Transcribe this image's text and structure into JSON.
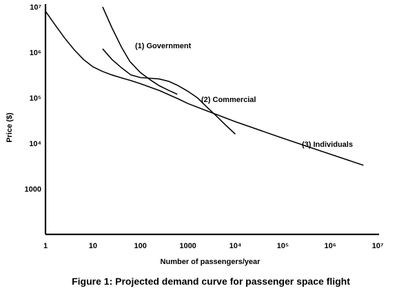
{
  "chart_data": {
    "type": "line",
    "title": "",
    "caption": "Figure 1:  Projected demand curve for passenger space flight",
    "xlabel": "Number of passengers/year",
    "ylabel": "Price ($)",
    "x_scale": "log",
    "y_scale": "log",
    "xlim": [
      1,
      10000000
    ],
    "ylim": [
      100,
      10000000
    ],
    "x_ticks": [
      {
        "value": 1,
        "label": "1"
      },
      {
        "value": 10,
        "label": "10"
      },
      {
        "value": 100,
        "label": "100"
      },
      {
        "value": 1000,
        "label": "1000"
      },
      {
        "value": 10000,
        "label": "10⁴"
      },
      {
        "value": 100000,
        "label": "10⁵"
      },
      {
        "value": 1000000,
        "label": "10⁶"
      },
      {
        "value": 10000000,
        "label": "10⁷"
      }
    ],
    "y_ticks": [
      {
        "value": 1000,
        "label": "1000"
      },
      {
        "value": 10000,
        "label": "10⁴"
      },
      {
        "value": 100000,
        "label": "10⁵"
      },
      {
        "value": 1000000,
        "label": "10⁶"
      },
      {
        "value": 10000000,
        "label": "10⁷"
      }
    ],
    "grid": false,
    "legend": "none",
    "series": [
      {
        "name": "(1)  Government",
        "x": [
          16,
          25,
          40,
          60,
          100,
          160,
          250,
          400,
          600
        ],
        "y": [
          10000000,
          3500000,
          1300000,
          630000,
          360000,
          250000,
          185000,
          145000,
          120000
        ]
      },
      {
        "name": "(2)  Commercial",
        "x": [
          16,
          25,
          40,
          63,
          100,
          160,
          250,
          400,
          630,
          1000,
          1600,
          2500,
          4000,
          6300,
          10000
        ],
        "y": [
          1200000,
          700000,
          460000,
          320000,
          280000,
          270000,
          260000,
          230000,
          185000,
          140000,
          100000,
          63000,
          40000,
          25000,
          16000
        ]
      },
      {
        "name": "(3)  Individuals",
        "x": [
          1,
          1.6,
          2.5,
          4,
          6.3,
          10,
          16,
          25,
          40,
          63,
          100,
          250,
          630,
          1000,
          2500,
          6300,
          10000,
          100000,
          1000000,
          5000000
        ],
        "y": [
          8000000,
          4000000,
          2100000,
          1150000,
          700000,
          480000,
          380000,
          320000,
          275000,
          240000,
          205000,
          145000,
          95000,
          75000,
          52000,
          36000,
          30000,
          13000,
          5800,
          3300
        ]
      }
    ]
  }
}
